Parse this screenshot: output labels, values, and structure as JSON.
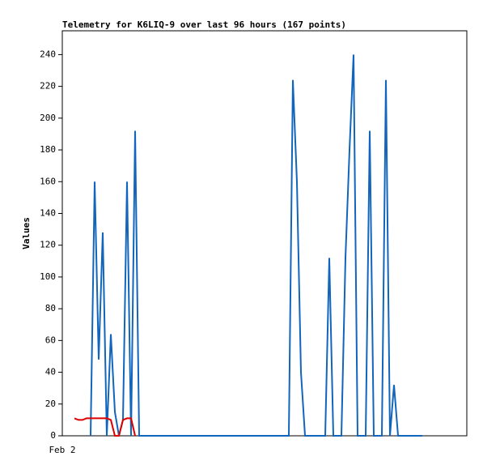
{
  "chart_data": {
    "type": "line",
    "title": "Telemetry for K6LIQ-9 over last 96 hours (167 points)",
    "y_label": "Values",
    "categories": [
      "Feb 2",
      null,
      null,
      null,
      null,
      null,
      null,
      null,
      null,
      null,
      null,
      null,
      null,
      null,
      null,
      null,
      null,
      null,
      null,
      null,
      null,
      null,
      null,
      null,
      null,
      null,
      null,
      null,
      null,
      null,
      null,
      null,
      null,
      null,
      null,
      null,
      null,
      null,
      null,
      null,
      null,
      null,
      null,
      null,
      null,
      null,
      null,
      null,
      null,
      null,
      null,
      null,
      null,
      null,
      null,
      null,
      null,
      null,
      null,
      null,
      null,
      null,
      null,
      null,
      null,
      null,
      null,
      null,
      null,
      null,
      null,
      null,
      null,
      null,
      null,
      null,
      null,
      null,
      null,
      null,
      null,
      null,
      null,
      null,
      null,
      null,
      null,
      null,
      null,
      null,
      null,
      null,
      null,
      null,
      null,
      null,
      null,
      null,
      null,
      null
    ],
    "series": [
      {
        "color": "#000000",
        "values": [
          null,
          null,
          null,
          0,
          0,
          0,
          0,
          0,
          0,
          0,
          0,
          0,
          0,
          0,
          0,
          0,
          0,
          0,
          0,
          0,
          0,
          0,
          0,
          0,
          0,
          0,
          0,
          0,
          0,
          0,
          0,
          0,
          0,
          0,
          0,
          0,
          0,
          0,
          0,
          0,
          0,
          0,
          0,
          0,
          0,
          0,
          0,
          0,
          0,
          0,
          0,
          0,
          0,
          0,
          0,
          0,
          0,
          0,
          0,
          0,
          0,
          0,
          0,
          0,
          0,
          0,
          0,
          0,
          0,
          0,
          0,
          0,
          0,
          0,
          0,
          0,
          0,
          0,
          0,
          0,
          0,
          0,
          0,
          0,
          0,
          0,
          0,
          0,
          0,
          0,
          null,
          null,
          null,
          null,
          null,
          null,
          null,
          null,
          null,
          null
        ]
      },
      {
        "color": "#1166bb",
        "values": [
          null,
          null,
          null,
          null,
          null,
          null,
          null,
          0,
          160,
          48,
          128,
          0,
          64,
          15,
          0,
          10,
          160,
          0,
          192,
          0,
          0,
          0,
          0,
          0,
          0,
          0,
          0,
          0,
          0,
          0,
          0,
          0,
          0,
          0,
          0,
          0,
          0,
          0,
          0,
          0,
          0,
          0,
          0,
          0,
          0,
          0,
          0,
          0,
          0,
          0,
          0,
          0,
          0,
          0,
          0,
          0,
          0,
          224,
          160,
          40,
          0,
          0,
          0,
          0,
          0,
          0,
          112,
          0,
          0,
          0,
          112,
          180,
          240,
          0,
          0,
          0,
          192,
          0,
          0,
          0,
          224,
          0,
          32,
          0,
          0,
          0,
          0,
          0,
          0,
          0,
          null,
          null,
          null,
          null,
          null,
          null,
          null,
          null,
          null,
          null
        ]
      },
      {
        "color": "#dd0000",
        "values": [
          null,
          null,
          null,
          11,
          10,
          10,
          11,
          11,
          11,
          11,
          11,
          11,
          10,
          0,
          0,
          10,
          11,
          11,
          0,
          null,
          null,
          null,
          null,
          null,
          null,
          null,
          null,
          null,
          null,
          null,
          null,
          null,
          null,
          null,
          null,
          null,
          null,
          null,
          null,
          null,
          null,
          null,
          null,
          null,
          null,
          null,
          null,
          null,
          null,
          null,
          null,
          null,
          null,
          null,
          null,
          null,
          null,
          null,
          null,
          null,
          null,
          null,
          null,
          null,
          null,
          null,
          null,
          null,
          null,
          null,
          null,
          null,
          null,
          null,
          null,
          null,
          null,
          null,
          null,
          null,
          null,
          null,
          null,
          null,
          null,
          null,
          null,
          null,
          null,
          null,
          null,
          null,
          null,
          null,
          null,
          null,
          null,
          null,
          null,
          null
        ]
      }
    ],
    "ylim": [
      0,
      255
    ],
    "yticks": [
      0,
      20,
      40,
      60,
      80,
      100,
      120,
      140,
      160,
      180,
      200,
      220,
      240
    ],
    "grid": false
  }
}
